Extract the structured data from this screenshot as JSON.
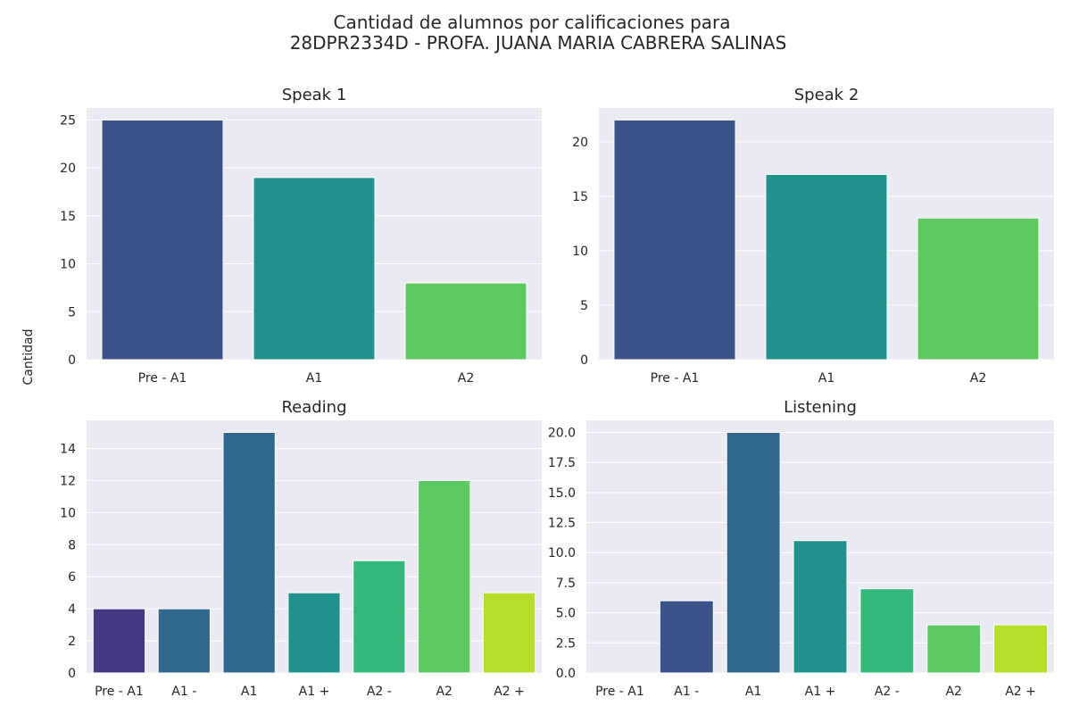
{
  "title_line1": "Cantidad de alumnos por calificaciones para",
  "title_line2": "28DPR2334D - PROFA. JUANA MARIA CABRERA SALINAS",
  "ylabel": "Cantidad",
  "colors": {
    "background": "#eaeaf2",
    "grid": "#ffffff",
    "text": "#262626"
  },
  "chart_data": [
    {
      "type": "bar",
      "title": "Speak 1",
      "categories": [
        "Pre - A1",
        "A1",
        "A2"
      ],
      "values": [
        25,
        19,
        8
      ],
      "ylim": [
        0,
        26.25
      ],
      "yticks": [
        "0",
        "5",
        "10",
        "15",
        "20",
        "25"
      ],
      "colors": [
        "#3b528b",
        "#21918c",
        "#5ec962"
      ],
      "grid": true
    },
    {
      "type": "bar",
      "title": "Speak 2",
      "categories": [
        "Pre - A1",
        "A1",
        "A2"
      ],
      "values": [
        22,
        17,
        13
      ],
      "ylim": [
        0,
        23.1
      ],
      "yticks": [
        "0",
        "5",
        "10",
        "15",
        "20"
      ],
      "colors": [
        "#3b528b",
        "#21918c",
        "#5ec962"
      ],
      "grid": true
    },
    {
      "type": "bar",
      "title": "Reading",
      "categories": [
        "Pre - A1",
        "A1 -",
        "A1",
        "A1 +",
        "A2 -",
        "A2",
        "A2 +"
      ],
      "values": [
        4,
        4,
        15,
        5,
        7,
        12,
        5
      ],
      "ylim": [
        0,
        15.75
      ],
      "yticks": [
        "0",
        "2",
        "4",
        "6",
        "8",
        "10",
        "12",
        "14"
      ],
      "colors": [
        "#443983",
        "#31688e",
        "#31688e",
        "#21918c",
        "#35b779",
        "#5ec962",
        "#b5de2b"
      ],
      "grid": true
    },
    {
      "type": "bar",
      "title": "Listening",
      "categories": [
        "Pre - A1",
        "A1 -",
        "A1",
        "A1 +",
        "A2 -",
        "A2",
        "A2 +"
      ],
      "values": [
        0,
        6,
        20,
        11,
        7,
        4,
        4
      ],
      "ylim": [
        0,
        21
      ],
      "yticks": [
        "0.0",
        "2.5",
        "5.0",
        "7.5",
        "10.0",
        "12.5",
        "15.0",
        "17.5",
        "20.0"
      ],
      "colors": [
        "#443983",
        "#3b528b",
        "#31688e",
        "#21918c",
        "#35b779",
        "#5ec962",
        "#b5de2b"
      ],
      "grid": true
    }
  ]
}
